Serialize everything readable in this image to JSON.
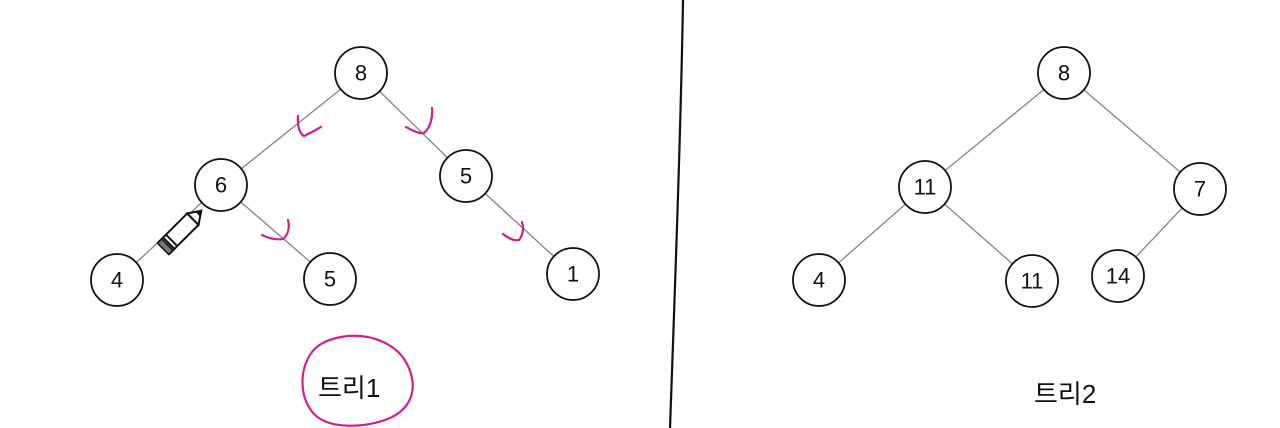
{
  "trees": [
    {
      "title": "트리1",
      "nodes": [
        {
          "id": "t1-root",
          "label": "8"
        },
        {
          "id": "t1-l",
          "label": "6"
        },
        {
          "id": "t1-r",
          "label": "5"
        },
        {
          "id": "t1-ll",
          "label": "4"
        },
        {
          "id": "t1-lr",
          "label": "5"
        },
        {
          "id": "t1-rr",
          "label": "1"
        }
      ],
      "edges": [
        [
          "t1-root",
          "t1-l"
        ],
        [
          "t1-root",
          "t1-r"
        ],
        [
          "t1-l",
          "t1-ll"
        ],
        [
          "t1-l",
          "t1-lr"
        ],
        [
          "t1-r",
          "t1-rr"
        ]
      ]
    },
    {
      "title": "트리2",
      "nodes": [
        {
          "id": "t2-root",
          "label": "8"
        },
        {
          "id": "t2-l",
          "label": "11"
        },
        {
          "id": "t2-r",
          "label": "7"
        },
        {
          "id": "t2-ll",
          "label": "4"
        },
        {
          "id": "t2-lr",
          "label": "11"
        },
        {
          "id": "t2-rl",
          "label": "14"
        }
      ],
      "edges": [
        [
          "t2-root",
          "t2-l"
        ],
        [
          "t2-root",
          "t2-r"
        ],
        [
          "t2-l",
          "t2-ll"
        ],
        [
          "t2-l",
          "t2-lr"
        ],
        [
          "t2-r",
          "t2-rl"
        ]
      ]
    }
  ],
  "colors": {
    "annotation": "#d0218a",
    "edge": "#8a8a8a",
    "node_stroke": "#111111",
    "divider": "#111111"
  },
  "icons": [
    "pencil-cursor-icon"
  ]
}
